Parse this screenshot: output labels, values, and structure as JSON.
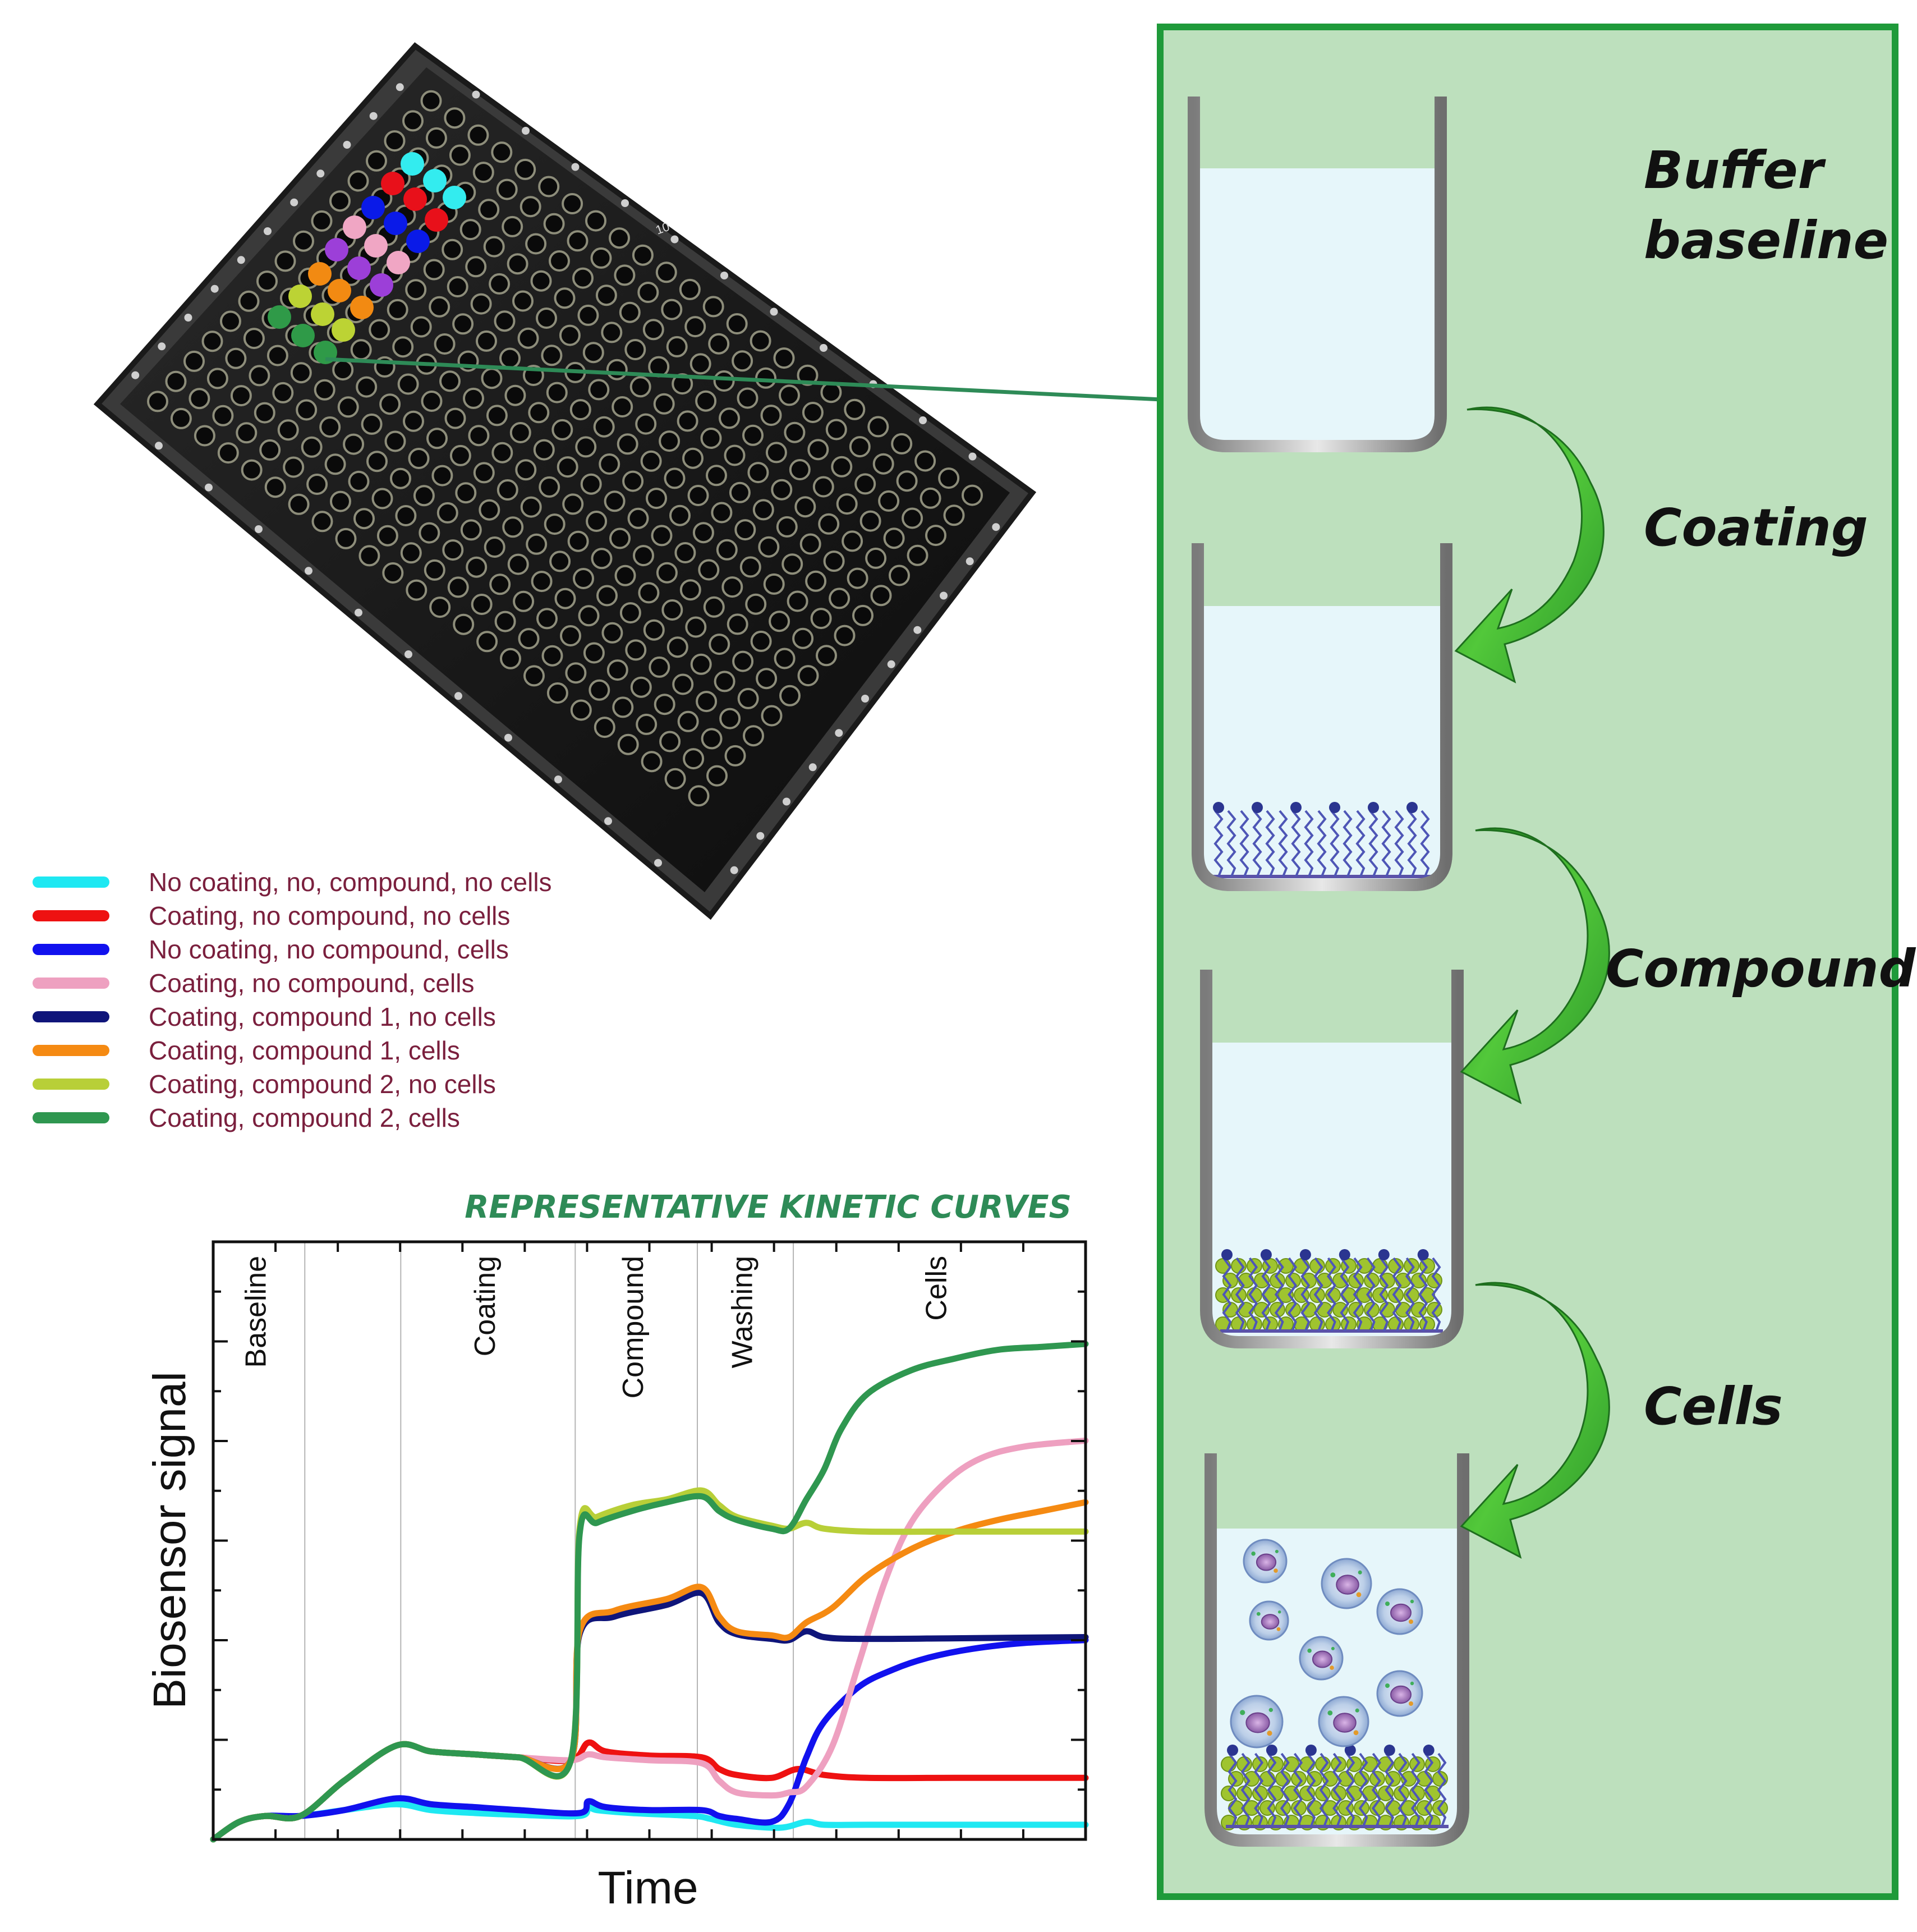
{
  "panel": {
    "steps": [
      {
        "line1": "Buffer",
        "line2": "baseline"
      },
      {
        "line1": "Coating",
        "line2": ""
      },
      {
        "line1": "Compound",
        "line2": ""
      },
      {
        "line1": "Cells",
        "line2": ""
      }
    ],
    "background_color": "#bde0bd",
    "border_color": "#1f9a3a",
    "arrow_color": "#3fa82a"
  },
  "plate": {
    "label": "10",
    "highlighted_well_colors": [
      "#33ecef",
      "#e8101a",
      "#0a1ae8",
      "#f0a6c4",
      "#9c3fd8",
      "#f28a12",
      "#bcd334",
      "#2f9a48"
    ]
  },
  "legend": {
    "items": [
      {
        "label": "No coating, no, compound, no cells",
        "color": "#1ee8f2"
      },
      {
        "label": "Coating, no compound, no cells",
        "color": "#ee1111"
      },
      {
        "label": "No coating, no compound, cells",
        "color": "#1111ee"
      },
      {
        "label": "Coating, no compound, cells",
        "color": "#eea0c0"
      },
      {
        "label": "Coating, compound 1, no cells",
        "color": "#0f157a"
      },
      {
        "label": "Coating, compound 1, cells",
        "color": "#f58a12"
      },
      {
        "label": "Coating, compound 2, no cells",
        "color": "#b8cf38"
      },
      {
        "label": "Coating, compound 2, cells",
        "color": "#2f9750"
      }
    ]
  },
  "chart_data": {
    "type": "line",
    "title": "REPRESENTATIVE KINETIC CURVES",
    "xlabel": "Time",
    "ylabel": "Biosensor signal",
    "xlim": [
      0,
      100
    ],
    "ylim": [
      0,
      100
    ],
    "grid": false,
    "phases": [
      {
        "label": "Baseline",
        "start": 0,
        "end": 10.5
      },
      {
        "label": "",
        "start": 10.5,
        "end": 21.5
      },
      {
        "label": "Coating",
        "start": 21.5,
        "end": 41.5
      },
      {
        "label": "Compound",
        "start": 41.5,
        "end": 55.5
      },
      {
        "label": "Washing",
        "start": 55.5,
        "end": 66.5
      },
      {
        "label": "Cells",
        "start": 66.5,
        "end": 100
      }
    ],
    "series": [
      {
        "name": "No coating, no, compound, no cells",
        "color": "#1ee8f2",
        "points": [
          [
            0,
            0
          ],
          [
            3,
            3
          ],
          [
            6,
            4
          ],
          [
            10,
            4
          ],
          [
            15,
            5
          ],
          [
            21,
            6
          ],
          [
            25,
            5
          ],
          [
            30,
            4.5
          ],
          [
            35,
            4.2
          ],
          [
            42,
            4
          ],
          [
            43,
            5.5
          ],
          [
            44,
            5
          ],
          [
            48,
            4.5
          ],
          [
            55,
            4
          ],
          [
            57,
            3.5
          ],
          [
            60,
            2.5
          ],
          [
            65,
            2
          ],
          [
            68,
            3
          ],
          [
            70,
            2.5
          ],
          [
            75,
            2.5
          ],
          [
            85,
            2.5
          ],
          [
            100,
            2.5
          ]
        ]
      },
      {
        "name": "Coating, no compound, no cells",
        "color": "#ee1111",
        "points": [
          [
            0,
            0
          ],
          [
            3,
            3
          ],
          [
            6,
            4
          ],
          [
            10,
            4
          ],
          [
            15,
            10
          ],
          [
            21,
            16
          ],
          [
            25,
            15
          ],
          [
            30,
            14.5
          ],
          [
            35,
            14
          ],
          [
            41,
            13.5
          ],
          [
            43,
            16.5
          ],
          [
            45,
            15
          ],
          [
            50,
            14.3
          ],
          [
            56,
            14
          ],
          [
            58,
            12
          ],
          [
            60,
            11
          ],
          [
            64,
            10.5
          ],
          [
            67,
            12
          ],
          [
            70,
            11
          ],
          [
            75,
            10.5
          ],
          [
            85,
            10.5
          ],
          [
            100,
            10.5
          ]
        ]
      },
      {
        "name": "No coating, no compound, cells",
        "color": "#1111ee",
        "points": [
          [
            0,
            0
          ],
          [
            3,
            3
          ],
          [
            6,
            4
          ],
          [
            10,
            4
          ],
          [
            15,
            5
          ],
          [
            21,
            7
          ],
          [
            25,
            6
          ],
          [
            30,
            5.5
          ],
          [
            35,
            5
          ],
          [
            42,
            4.5
          ],
          [
            43,
            6.5
          ],
          [
            45,
            5.5
          ],
          [
            50,
            5
          ],
          [
            56,
            5
          ],
          [
            58,
            4
          ],
          [
            60,
            3.5
          ],
          [
            64,
            3
          ],
          [
            66,
            6
          ],
          [
            68,
            14
          ],
          [
            70,
            20
          ],
          [
            74,
            26
          ],
          [
            78,
            29
          ],
          [
            82,
            31
          ],
          [
            87,
            32.5
          ],
          [
            93,
            33.5
          ],
          [
            100,
            34
          ]
        ]
      },
      {
        "name": "Coating, no compound, cells",
        "color": "#eea0c0",
        "points": [
          [
            0,
            0
          ],
          [
            3,
            3
          ],
          [
            6,
            4
          ],
          [
            10,
            4
          ],
          [
            15,
            10
          ],
          [
            21,
            16
          ],
          [
            25,
            15
          ],
          [
            30,
            14.5
          ],
          [
            35,
            14
          ],
          [
            41,
            13.5
          ],
          [
            43,
            14.5
          ],
          [
            45,
            14
          ],
          [
            50,
            13.5
          ],
          [
            56,
            13
          ],
          [
            58,
            10
          ],
          [
            60,
            8
          ],
          [
            64,
            7.5
          ],
          [
            66,
            8
          ],
          [
            68,
            9
          ],
          [
            71,
            16
          ],
          [
            74,
            30
          ],
          [
            77,
            44
          ],
          [
            80,
            54
          ],
          [
            84,
            61
          ],
          [
            88,
            65
          ],
          [
            93,
            67
          ],
          [
            100,
            68
          ]
        ]
      },
      {
        "name": "Coating, compound 1, no cells",
        "color": "#0f157a",
        "points": [
          [
            0,
            0
          ],
          [
            3,
            3
          ],
          [
            6,
            4
          ],
          [
            10,
            4
          ],
          [
            15,
            10
          ],
          [
            21,
            16
          ],
          [
            25,
            15
          ],
          [
            30,
            14.5
          ],
          [
            35,
            14
          ],
          [
            41,
            13.5
          ],
          [
            42,
            35
          ],
          [
            46,
            38
          ],
          [
            52,
            40
          ],
          [
            56,
            42
          ],
          [
            58,
            37
          ],
          [
            60,
            35
          ],
          [
            64,
            34.2
          ],
          [
            66,
            34
          ],
          [
            68,
            35.5
          ],
          [
            70,
            34.5
          ],
          [
            74,
            34.2
          ],
          [
            85,
            34.3
          ],
          [
            100,
            34.5
          ]
        ]
      },
      {
        "name": "Coating, compound 1, cells",
        "color": "#f58a12",
        "points": [
          [
            0,
            0
          ],
          [
            3,
            3
          ],
          [
            6,
            4
          ],
          [
            10,
            4
          ],
          [
            15,
            10
          ],
          [
            21,
            16
          ],
          [
            25,
            15
          ],
          [
            30,
            14.5
          ],
          [
            35,
            14
          ],
          [
            41,
            13.5
          ],
          [
            42,
            35.5
          ],
          [
            46,
            39
          ],
          [
            52,
            41
          ],
          [
            56,
            43
          ],
          [
            58,
            38
          ],
          [
            60,
            35.5
          ],
          [
            64,
            34.8
          ],
          [
            66,
            34.5
          ],
          [
            68,
            37
          ],
          [
            71,
            39.5
          ],
          [
            75,
            45
          ],
          [
            80,
            49.5
          ],
          [
            85,
            52.5
          ],
          [
            90,
            54.5
          ],
          [
            95,
            56
          ],
          [
            100,
            57.5
          ]
        ]
      },
      {
        "name": "Coating, compound 2, no cells",
        "color": "#b8cf38",
        "points": [
          [
            0,
            0
          ],
          [
            3,
            3
          ],
          [
            6,
            4
          ],
          [
            10,
            4
          ],
          [
            15,
            10
          ],
          [
            21,
            16
          ],
          [
            25,
            15
          ],
          [
            30,
            14.5
          ],
          [
            35,
            14
          ],
          [
            41,
            13.5
          ],
          [
            42,
            53
          ],
          [
            44,
            55
          ],
          [
            48,
            57
          ],
          [
            52,
            58
          ],
          [
            56,
            59.5
          ],
          [
            58,
            57
          ],
          [
            60,
            55
          ],
          [
            64,
            53.5
          ],
          [
            66,
            53
          ],
          [
            68,
            54
          ],
          [
            70,
            53
          ],
          [
            75,
            52.5
          ],
          [
            85,
            52.5
          ],
          [
            100,
            52.5
          ]
        ]
      },
      {
        "name": "Coating, compound 2, cells",
        "color": "#2f9750",
        "points": [
          [
            0,
            0
          ],
          [
            3,
            3
          ],
          [
            6,
            4
          ],
          [
            10,
            4
          ],
          [
            15,
            10
          ],
          [
            21,
            16
          ],
          [
            25,
            15
          ],
          [
            30,
            14.5
          ],
          [
            35,
            14
          ],
          [
            41,
            13.5
          ],
          [
            42,
            52
          ],
          [
            44,
            54
          ],
          [
            48,
            56
          ],
          [
            52,
            57.5
          ],
          [
            56,
            58.5
          ],
          [
            58,
            56
          ],
          [
            60,
            54.5
          ],
          [
            64,
            53
          ],
          [
            66,
            53
          ],
          [
            68,
            58
          ],
          [
            70,
            63
          ],
          [
            72,
            70
          ],
          [
            75,
            76
          ],
          [
            80,
            80
          ],
          [
            85,
            82
          ],
          [
            90,
            83.5
          ],
          [
            95,
            84
          ],
          [
            100,
            84.5
          ]
        ]
      }
    ]
  }
}
